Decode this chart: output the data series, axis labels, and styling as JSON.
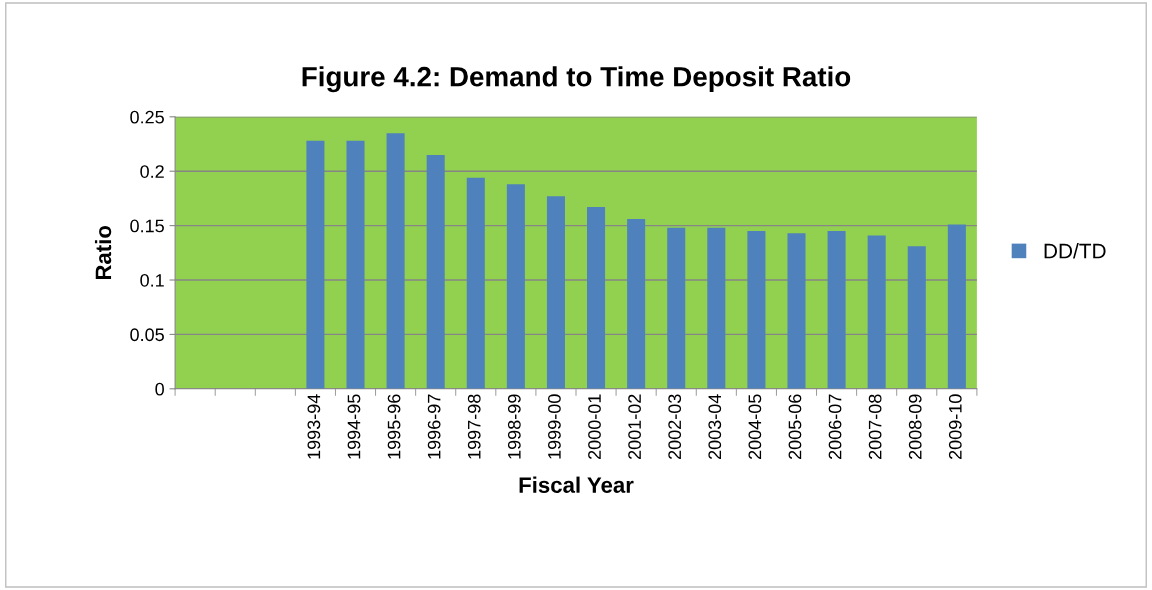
{
  "chart_data": {
    "type": "bar",
    "title": "Figure 4.2: Demand to Time Deposit Ratio",
    "xlabel": "Fiscal Year",
    "ylabel": "Ratio",
    "categories": [
      null,
      null,
      null,
      "1993-94",
      "1994-95",
      "1995-96",
      "1996-97",
      "1997-98",
      "1998-99",
      "1999-00",
      "2000-01",
      "2001-02",
      "2002-03",
      "2003-04",
      "2004-05",
      "2005-06",
      "2006-07",
      "2007-08",
      "2008-09",
      "2009-10"
    ],
    "series": [
      {
        "name": "DD/TD",
        "color": "#4f81bd",
        "values": [
          null,
          null,
          null,
          0.228,
          0.228,
          0.235,
          0.215,
          0.194,
          0.188,
          0.177,
          0.167,
          0.156,
          0.148,
          0.148,
          0.145,
          0.143,
          0.145,
          0.141,
          0.131,
          0.151
        ]
      }
    ],
    "ylim": [
      0,
      0.25
    ],
    "yticks": [
      0,
      0.05,
      0.1,
      0.15,
      0.2,
      0.25
    ],
    "grid": "y",
    "legend": "right"
  }
}
